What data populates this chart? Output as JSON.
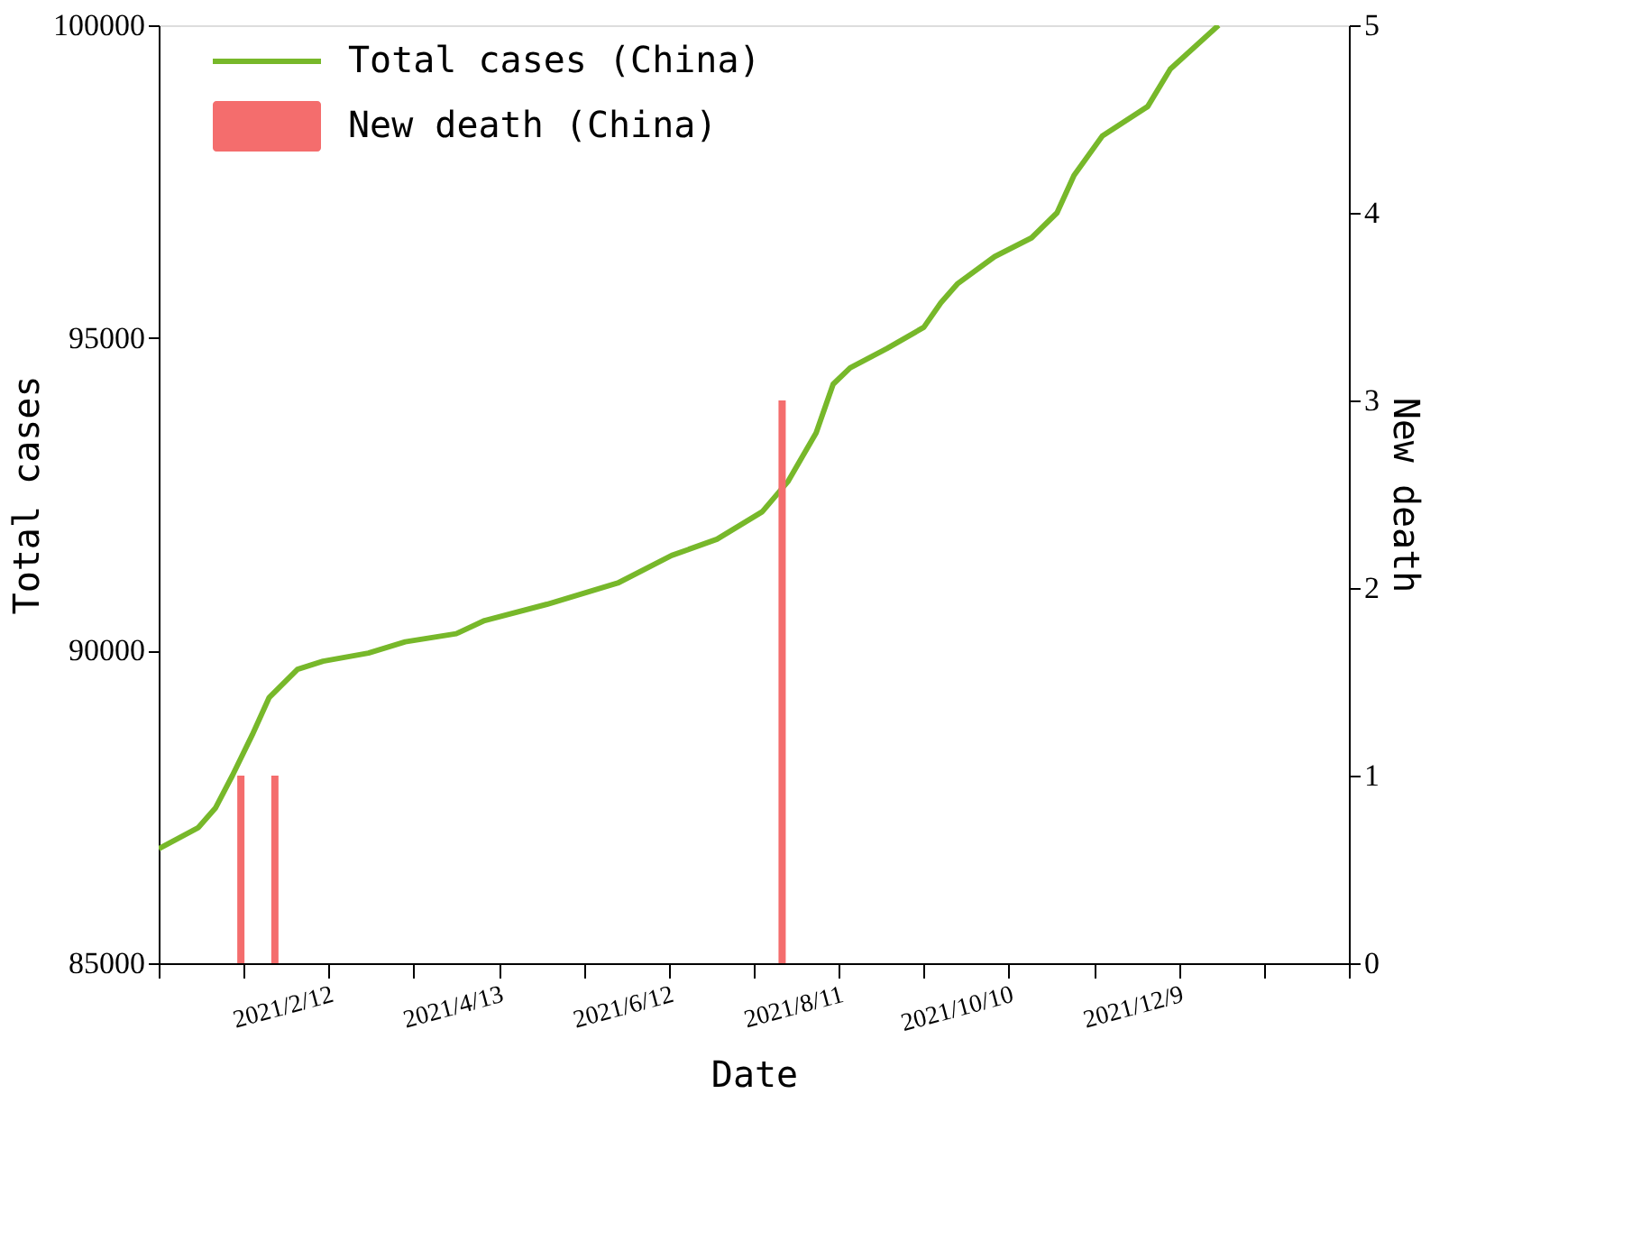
{
  "chart_data": {
    "type": "line",
    "xlabel": "Date",
    "ylabel": "Total cases",
    "y2label": "New death",
    "xlim": [
      "2020-12-14",
      "2022-02-07"
    ],
    "xticks": [
      {
        "value": "2020-12-14",
        "label": null
      },
      {
        "value": "2021-01-13",
        "label": null
      },
      {
        "value": "2021-02-12",
        "label": "2021/2/12"
      },
      {
        "value": "2021-03-14",
        "label": null
      },
      {
        "value": "2021-04-13",
        "label": "2021/4/13"
      },
      {
        "value": "2021-05-13",
        "label": null
      },
      {
        "value": "2021-06-12",
        "label": "2021/6/12"
      },
      {
        "value": "2021-07-12",
        "label": null
      },
      {
        "value": "2021-08-11",
        "label": "2021/8/11"
      },
      {
        "value": "2021-09-10",
        "label": null
      },
      {
        "value": "2021-10-10",
        "label": "2021/10/10"
      },
      {
        "value": "2021-11-09",
        "label": null
      },
      {
        "value": "2021-12-09",
        "label": "2021/12/9"
      },
      {
        "value": "2022-01-08",
        "label": null
      },
      {
        "value": "2022-02-07",
        "label": null
      }
    ],
    "ylim": [
      85000,
      100000
    ],
    "yticks": [
      85000,
      90000,
      95000,
      100000
    ],
    "y2lim": [
      0,
      5
    ],
    "y2ticks": [
      0,
      1,
      2,
      3,
      4,
      5
    ],
    "grid": false,
    "legend": "top left",
    "marker": "none",
    "line_style": "solid",
    "series": [
      {
        "name": "Total cases (China)",
        "color": "#77b82a",
        "x": [
          "2020-12-14",
          "2020-12-28",
          "2021-01-03",
          "2021-01-09",
          "2021-01-16",
          "2021-01-22",
          "2021-02-01",
          "2021-02-10",
          "2021-02-26",
          "2021-03-11",
          "2021-03-29",
          "2021-04-08",
          "2021-04-30",
          "2021-05-25",
          "2021-06-13",
          "2021-06-29",
          "2021-07-15",
          "2021-07-24",
          "2021-08-03",
          "2021-08-09",
          "2021-08-15",
          "2021-08-28",
          "2021-09-10",
          "2021-09-16",
          "2021-09-22",
          "2021-10-05",
          "2021-10-18",
          "2021-10-27",
          "2021-11-02",
          "2021-11-12",
          "2021-11-28",
          "2021-12-06",
          "2021-12-23"
        ],
        "values": [
          86830,
          87170,
          87480,
          88000,
          88650,
          89250,
          89700,
          89830,
          89960,
          90140,
          90270,
          90480,
          90740,
          91080,
          91520,
          91780,
          92220,
          92700,
          93480,
          94260,
          94520,
          94830,
          95170,
          95560,
          95870,
          96300,
          96600,
          97000,
          97600,
          98230,
          98700,
          99300,
          100000
        ]
      },
      {
        "name": "New death (China)",
        "type": "bar",
        "axis": "y2",
        "color": "#f46d6d",
        "x": [
          "2021-01-12",
          "2021-01-24",
          "2021-07-22"
        ],
        "values": [
          1,
          1,
          3
        ]
      }
    ]
  }
}
